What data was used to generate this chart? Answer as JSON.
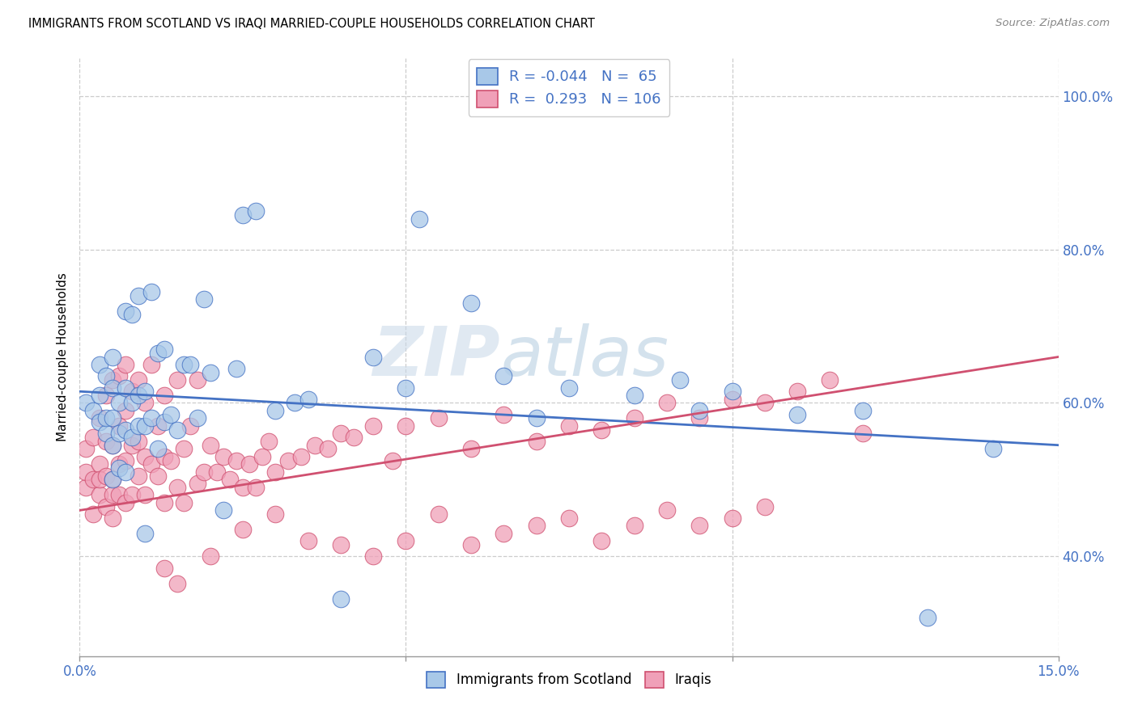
{
  "title": "IMMIGRANTS FROM SCOTLAND VS IRAQI MARRIED-COUPLE HOUSEHOLDS CORRELATION CHART",
  "source": "Source: ZipAtlas.com",
  "ylabel": "Married-couple Households",
  "legend_label1": "Immigrants from Scotland",
  "legend_label2": "Iraqis",
  "color_scotland": "#a8c8e8",
  "color_iraq": "#f0a0b8",
  "color_line_scotland": "#4472c4",
  "color_line_iraq": "#d05070",
  "color_blue_text": "#4472c4",
  "watermark_zip": "ZIP",
  "watermark_atlas": "atlas",
  "scotland_x": [
    0.001,
    0.002,
    0.003,
    0.003,
    0.003,
    0.004,
    0.004,
    0.004,
    0.005,
    0.005,
    0.005,
    0.005,
    0.005,
    0.006,
    0.006,
    0.006,
    0.007,
    0.007,
    0.007,
    0.007,
    0.008,
    0.008,
    0.008,
    0.009,
    0.009,
    0.009,
    0.01,
    0.01,
    0.01,
    0.011,
    0.011,
    0.012,
    0.012,
    0.013,
    0.013,
    0.014,
    0.015,
    0.016,
    0.017,
    0.018,
    0.019,
    0.02,
    0.022,
    0.024,
    0.025,
    0.027,
    0.03,
    0.033,
    0.035,
    0.04,
    0.045,
    0.05,
    0.052,
    0.06,
    0.065,
    0.07,
    0.075,
    0.085,
    0.092,
    0.095,
    0.1,
    0.11,
    0.12,
    0.13,
    0.14
  ],
  "scotland_y": [
    0.6,
    0.59,
    0.575,
    0.61,
    0.65,
    0.56,
    0.58,
    0.635,
    0.5,
    0.545,
    0.58,
    0.62,
    0.66,
    0.515,
    0.56,
    0.6,
    0.51,
    0.565,
    0.62,
    0.72,
    0.555,
    0.6,
    0.715,
    0.57,
    0.61,
    0.74,
    0.43,
    0.57,
    0.615,
    0.58,
    0.745,
    0.54,
    0.665,
    0.575,
    0.67,
    0.585,
    0.565,
    0.65,
    0.65,
    0.58,
    0.735,
    0.64,
    0.46,
    0.645,
    0.845,
    0.85,
    0.59,
    0.6,
    0.605,
    0.345,
    0.66,
    0.62,
    0.84,
    0.73,
    0.635,
    0.58,
    0.62,
    0.61,
    0.63,
    0.59,
    0.615,
    0.585,
    0.59,
    0.32,
    0.54
  ],
  "iraq_x": [
    0.001,
    0.001,
    0.001,
    0.002,
    0.002,
    0.002,
    0.003,
    0.003,
    0.003,
    0.003,
    0.004,
    0.004,
    0.004,
    0.004,
    0.005,
    0.005,
    0.005,
    0.005,
    0.005,
    0.006,
    0.006,
    0.006,
    0.006,
    0.007,
    0.007,
    0.007,
    0.007,
    0.008,
    0.008,
    0.008,
    0.009,
    0.009,
    0.009,
    0.01,
    0.01,
    0.01,
    0.011,
    0.011,
    0.012,
    0.012,
    0.013,
    0.013,
    0.013,
    0.014,
    0.015,
    0.015,
    0.016,
    0.016,
    0.017,
    0.018,
    0.018,
    0.019,
    0.02,
    0.021,
    0.022,
    0.023,
    0.024,
    0.025,
    0.026,
    0.027,
    0.028,
    0.029,
    0.03,
    0.032,
    0.034,
    0.036,
    0.038,
    0.04,
    0.042,
    0.045,
    0.048,
    0.05,
    0.055,
    0.06,
    0.065,
    0.07,
    0.075,
    0.08,
    0.085,
    0.09,
    0.095,
    0.1,
    0.105,
    0.11,
    0.115,
    0.12,
    0.013,
    0.015,
    0.02,
    0.025,
    0.03,
    0.035,
    0.04,
    0.045,
    0.05,
    0.055,
    0.06,
    0.065,
    0.07,
    0.075,
    0.08,
    0.085,
    0.09,
    0.095,
    0.1,
    0.105
  ],
  "iraq_y": [
    0.49,
    0.51,
    0.54,
    0.455,
    0.5,
    0.555,
    0.48,
    0.52,
    0.58,
    0.5,
    0.465,
    0.505,
    0.55,
    0.61,
    0.45,
    0.5,
    0.545,
    0.63,
    0.48,
    0.48,
    0.52,
    0.57,
    0.635,
    0.47,
    0.525,
    0.59,
    0.65,
    0.48,
    0.545,
    0.615,
    0.505,
    0.55,
    0.63,
    0.48,
    0.53,
    0.6,
    0.52,
    0.65,
    0.505,
    0.57,
    0.47,
    0.53,
    0.61,
    0.525,
    0.49,
    0.63,
    0.54,
    0.47,
    0.57,
    0.495,
    0.63,
    0.51,
    0.545,
    0.51,
    0.53,
    0.5,
    0.525,
    0.49,
    0.52,
    0.49,
    0.53,
    0.55,
    0.51,
    0.525,
    0.53,
    0.545,
    0.54,
    0.56,
    0.555,
    0.57,
    0.525,
    0.57,
    0.58,
    0.54,
    0.585,
    0.55,
    0.57,
    0.565,
    0.58,
    0.6,
    0.58,
    0.605,
    0.6,
    0.615,
    0.63,
    0.56,
    0.385,
    0.365,
    0.4,
    0.435,
    0.455,
    0.42,
    0.415,
    0.4,
    0.42,
    0.455,
    0.415,
    0.43,
    0.44,
    0.45,
    0.42,
    0.44,
    0.46,
    0.44,
    0.45,
    0.465
  ],
  "scot_line_x0": 0.0,
  "scot_line_x1": 0.15,
  "scot_line_y0": 0.615,
  "scot_line_y1": 0.545,
  "iraq_line_x0": 0.0,
  "iraq_line_x1": 0.15,
  "iraq_line_y0": 0.46,
  "iraq_line_y1": 0.66,
  "xlim": [
    0.0,
    0.15
  ],
  "ylim": [
    0.27,
    1.05
  ],
  "yticks": [
    0.4,
    0.6,
    0.8,
    1.0
  ],
  "xtick_positions": [
    0.0,
    0.05,
    0.1,
    0.15
  ],
  "xtick_show": [
    0.0,
    0.15
  ]
}
